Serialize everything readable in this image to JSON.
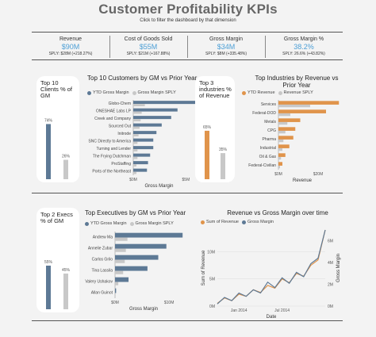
{
  "page": {
    "title": "Customer Profitability KPIs",
    "subtitle": "Click to filter the dashboard by that dimension"
  },
  "colors": {
    "blue": "#5d7995",
    "orange": "#e0944b",
    "gray": "#c8c8c8",
    "accent": "#4c9fd6"
  },
  "kpis": [
    {
      "label": "Revenue",
      "value": "$90M",
      "sply": "SPLY: $28M (+218.27%)"
    },
    {
      "label": "Cost of Goods Sold",
      "value": "$55M",
      "sply": "SPLY: $21M (+167.88%)"
    },
    {
      "label": "Gross Margin",
      "value": "$34M",
      "sply": "SPLY: $8M (+335.48%)"
    },
    {
      "label": "Gross Margin %",
      "value": "38.2%",
      "sply": "SPLY: 26.6% (+43.82%)"
    }
  ],
  "legend": {
    "ytd_gm": "YTD Gross Margin",
    "gm_sply": "Gross Margin SPLY",
    "ytd_rev": "YTD Revenue",
    "rev_sply": "Revenue SPLY",
    "sum_rev": "Sum of Revenue",
    "gm": "Gross Margin"
  },
  "chart_data": [
    {
      "type": "bar",
      "title": "Top 10 Clients % of GM",
      "categories": [
        "Top 10 Clients"
      ],
      "series": [
        {
          "name": "YTD",
          "values": [
            74
          ]
        },
        {
          "name": "SPLY",
          "values": [
            26
          ]
        }
      ],
      "value_labels": [
        "74%",
        "26%"
      ],
      "ylim": [
        0,
        100
      ]
    },
    {
      "type": "bar",
      "title": "Top 10 Customers by GM vs Prior Year",
      "categories": [
        "Globo-Chem",
        "ONESHAE Labs LP",
        "Creek and Company",
        "Sourced Out",
        "Initrode",
        "SNC Directly to America",
        "Turning and Lender",
        "The Frying Dutchman",
        "ProStaffing",
        "Ports of the Northeast"
      ],
      "series": [
        {
          "name": "YTD Gross Margin",
          "values": [
            6.4,
            4.2,
            3.6,
            2.7,
            2.2,
            1.9,
            1.9,
            1.6,
            1.4,
            1.3
          ]
        },
        {
          "name": "Gross Margin SPLY",
          "values": [
            1.1,
            0.8,
            0.7,
            0.6,
            0.5,
            0.4,
            0.4,
            0.4,
            0.3,
            0.3
          ]
        }
      ],
      "xlabel": "Gross Margin",
      "xlim": [
        0,
        6.4
      ],
      "xticks": [
        "$0M",
        "$5M"
      ]
    },
    {
      "type": "bar",
      "title": "Top 3 industries % of Revenue",
      "categories": [
        "Top 3 industries"
      ],
      "series": [
        {
          "name": "YTD",
          "values": [
            65
          ]
        },
        {
          "name": "SPLY",
          "values": [
            35
          ]
        }
      ],
      "value_labels": [
        "65%",
        "35%"
      ],
      "ylim": [
        0,
        100
      ]
    },
    {
      "type": "bar",
      "title": "Top Industries by Revenue vs Prior Year",
      "categories": [
        "Services",
        "Federal-DOD",
        "Metals",
        "CPG",
        "Pharma",
        "Industrial",
        "Oil & Gas",
        "Federal-Civilian"
      ],
      "series": [
        {
          "name": "YTD Revenue",
          "values": [
            30.5,
            24,
            11,
            8.5,
            7.5,
            5.5,
            3.5,
            2
          ]
        },
        {
          "name": "Revenue SPLY",
          "values": [
            16,
            6,
            4.5,
            3.5,
            2.5,
            2,
            1.3,
            0.8
          ]
        }
      ],
      "xlabel": "Revenue",
      "xlim": [
        0,
        32
      ],
      "xticks": [
        "$0M",
        "$20M"
      ]
    },
    {
      "type": "bar",
      "title": "Top 2 Execs % of GM",
      "categories": [
        "Top 2 Execs"
      ],
      "series": [
        {
          "name": "YTD",
          "values": [
            55
          ]
        },
        {
          "name": "SPLY",
          "values": [
            45
          ]
        }
      ],
      "value_labels": [
        "55%",
        "45%"
      ],
      "ylim": [
        0,
        100
      ]
    },
    {
      "type": "bar",
      "title": "Top Executives by GM vs Prior Year",
      "categories": [
        "Andrew Ma",
        "Annelie Zubar",
        "Carlos Grilo",
        "Tina Lassila",
        "Valery Ushakov",
        "Allan Guinot"
      ],
      "series": [
        {
          "name": "YTD Gross Margin",
          "values": [
            12.5,
            9.5,
            8,
            6,
            2.5,
            0.2
          ]
        },
        {
          "name": "Gross Margin SPLY",
          "values": [
            2.3,
            2,
            1.8,
            1.5,
            0.6,
            0.1
          ]
        }
      ],
      "xlabel": "Gross Margin",
      "xlim": [
        0,
        13.5
      ],
      "xticks": [
        "$0M",
        "$10M"
      ]
    },
    {
      "type": "line",
      "title": "Revenue vs Gross Margin over time",
      "xlabel": "Date",
      "ylabel": "Sum of Revenue",
      "y2label": "Gross Margin",
      "x": [
        "2013-10",
        "2013-11",
        "2013-12",
        "2014-01",
        "2014-02",
        "2014-03",
        "2014-04",
        "2014-05",
        "2014-06",
        "2014-07",
        "2014-08",
        "2014-09",
        "2014-10",
        "2014-11",
        "2014-12",
        "2015-01"
      ],
      "xticks": [
        "Jan 2014",
        "Jul 2014"
      ],
      "yticks": [
        "0M",
        "5M",
        "10M"
      ],
      "y2ticks": [
        "0M",
        "2M",
        "4M",
        "6M"
      ],
      "ylim": [
        0,
        14
      ],
      "y2lim": [
        0,
        7
      ],
      "series": [
        {
          "name": "Sum of Revenue",
          "axis": "left",
          "values": [
            0.5,
            1.5,
            1.0,
            2.2,
            1.8,
            3.0,
            2.5,
            3.8,
            3.3,
            5.0,
            4.3,
            6.0,
            5.5,
            7.5,
            8.5,
            14.0
          ]
        },
        {
          "name": "Gross Margin",
          "axis": "right",
          "values": [
            0.2,
            0.8,
            0.5,
            1.2,
            0.9,
            1.5,
            1.2,
            2.2,
            1.7,
            2.6,
            2.1,
            3.1,
            2.7,
            3.9,
            4.4,
            7.0
          ]
        }
      ]
    }
  ]
}
